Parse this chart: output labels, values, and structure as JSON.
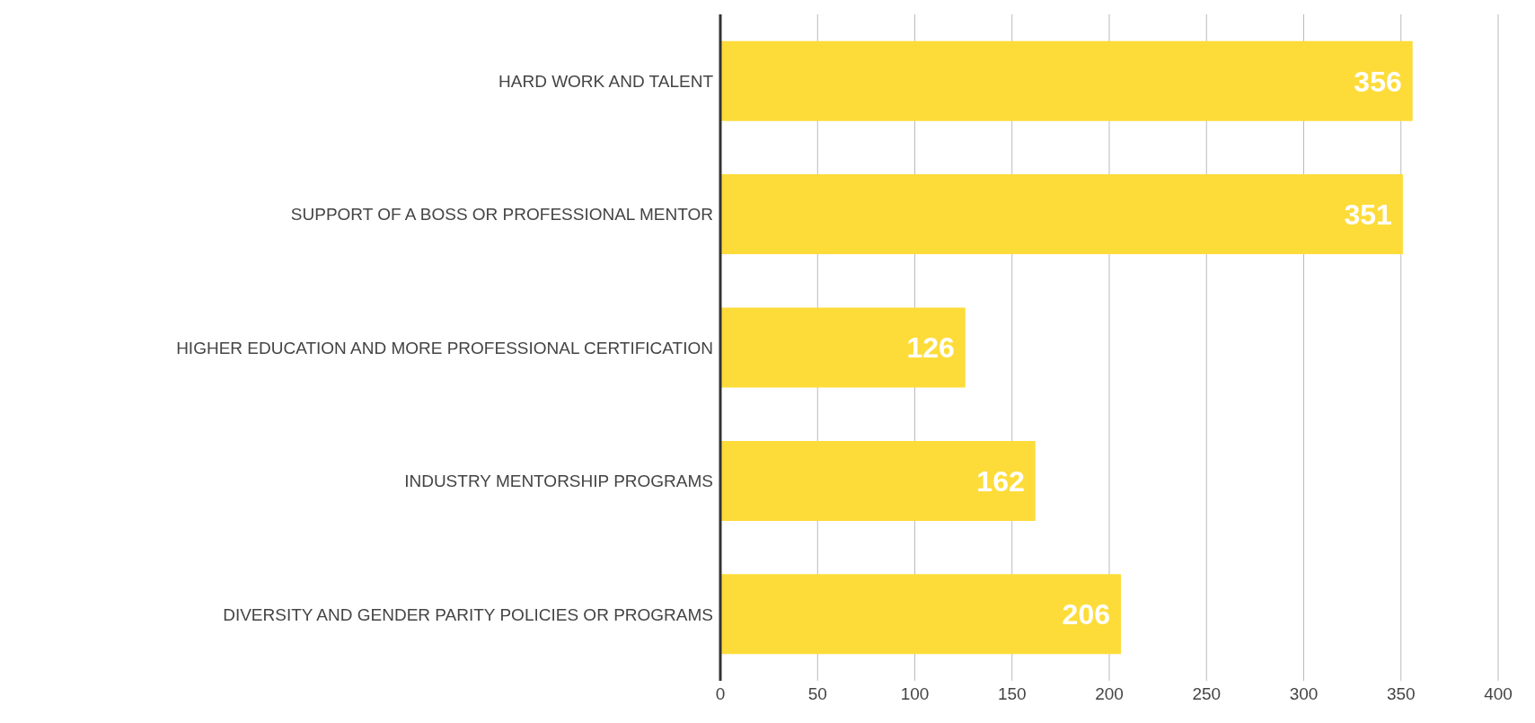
{
  "chart_data": {
    "type": "bar",
    "orientation": "horizontal",
    "categories": [
      "HARD WORK AND TALENT",
      "SUPPORT OF A BOSS OR PROFESSIONAL MENTOR",
      "HIGHER EDUCATION AND MORE PROFESSIONAL CERTIFICATION",
      "INDUSTRY MENTORSHIP PROGRAMS",
      "DIVERSITY AND GENDER PARITY POLICIES OR PROGRAMS"
    ],
    "values": [
      356,
      351,
      126,
      162,
      206
    ],
    "color": "#fddc3a",
    "xlim": [
      0,
      400
    ],
    "xticks": [
      0,
      50,
      100,
      150,
      200,
      250,
      300,
      350,
      400
    ],
    "grid": "x",
    "data_labels": true
  }
}
